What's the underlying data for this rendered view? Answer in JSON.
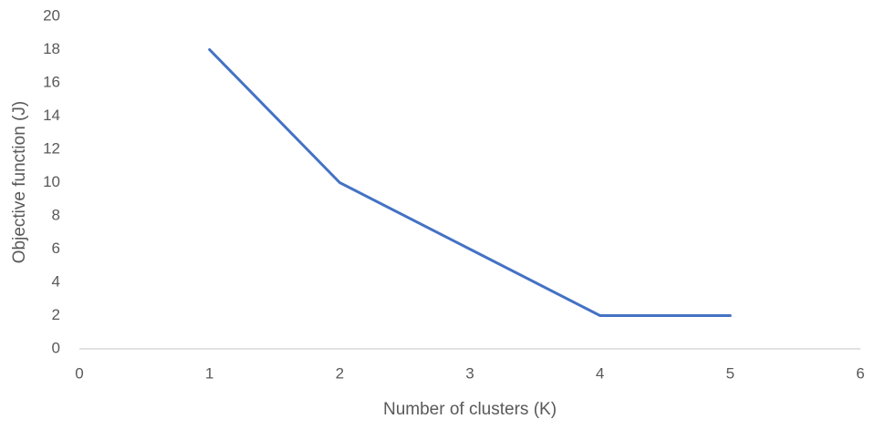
{
  "chart_data": {
    "type": "line",
    "x_label": "Number of clusters (K)",
    "y_label": "Objective function (J)",
    "x": [
      1,
      2,
      3,
      4,
      5
    ],
    "series": [
      {
        "name": "J",
        "color": "#4472c4",
        "values": [
          18,
          10,
          6,
          2,
          2
        ]
      }
    ],
    "xlim": [
      0,
      6
    ],
    "xticks": [
      0,
      1,
      2,
      3,
      4,
      5,
      6
    ],
    "ylim": [
      0,
      20
    ],
    "yticks": [
      0,
      2,
      4,
      6,
      8,
      10,
      12,
      14,
      16,
      18,
      20
    ],
    "grid": false,
    "legend": false
  }
}
